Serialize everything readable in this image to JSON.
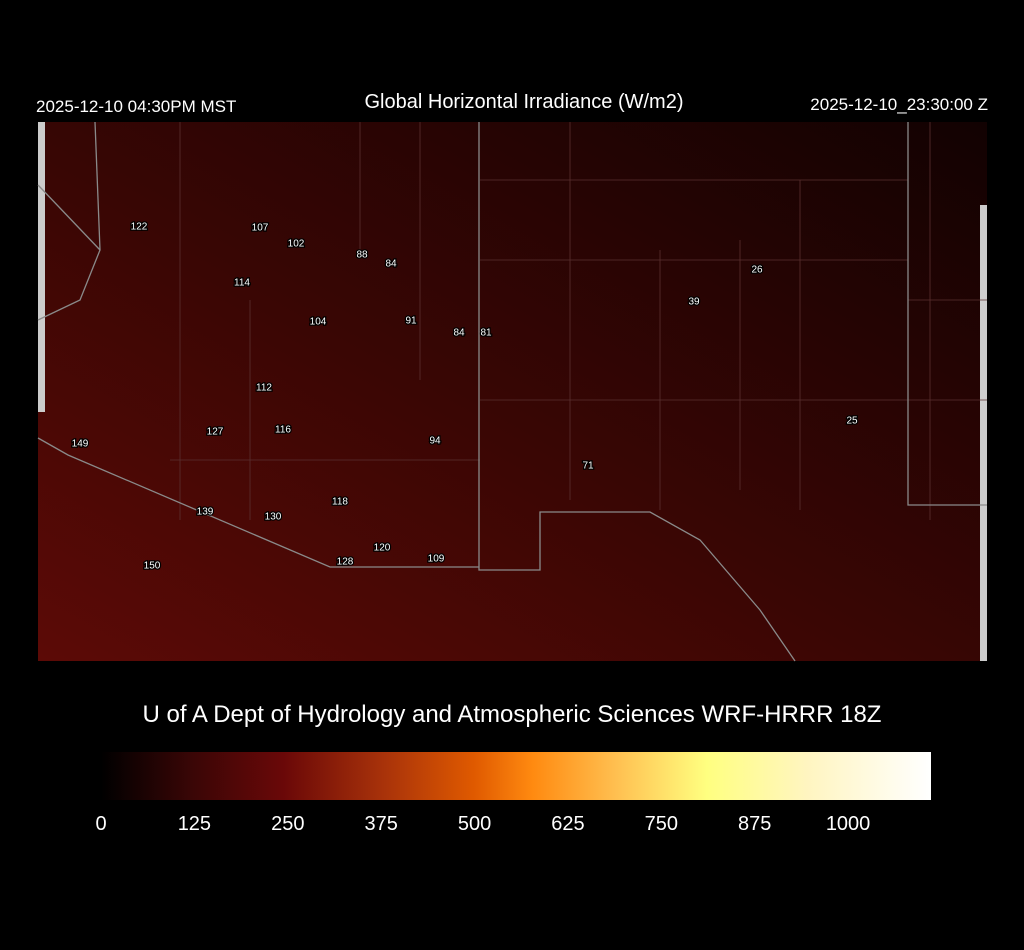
{
  "header": {
    "local_time": "2025-12-10 04:30PM MST",
    "title": "Global Horizontal Irradiance (W/m2)",
    "utc_time": "2025-12-10_23:30:00 Z"
  },
  "stations": [
    122,
    107,
    102,
    88,
    84,
    114,
    104,
    91,
    84,
    81,
    112,
    149,
    127,
    116,
    94,
    71,
    118,
    139,
    130,
    120,
    128,
    109,
    150,
    26,
    39,
    25
  ],
  "footer": "U of A Dept of Hydrology and Atmospheric Sciences WRF-HRRR 18Z",
  "colorbar": {
    "range": [
      0,
      1111
    ],
    "ticks": [
      0,
      125,
      250,
      375,
      500,
      625,
      750,
      875,
      1000
    ]
  }
}
